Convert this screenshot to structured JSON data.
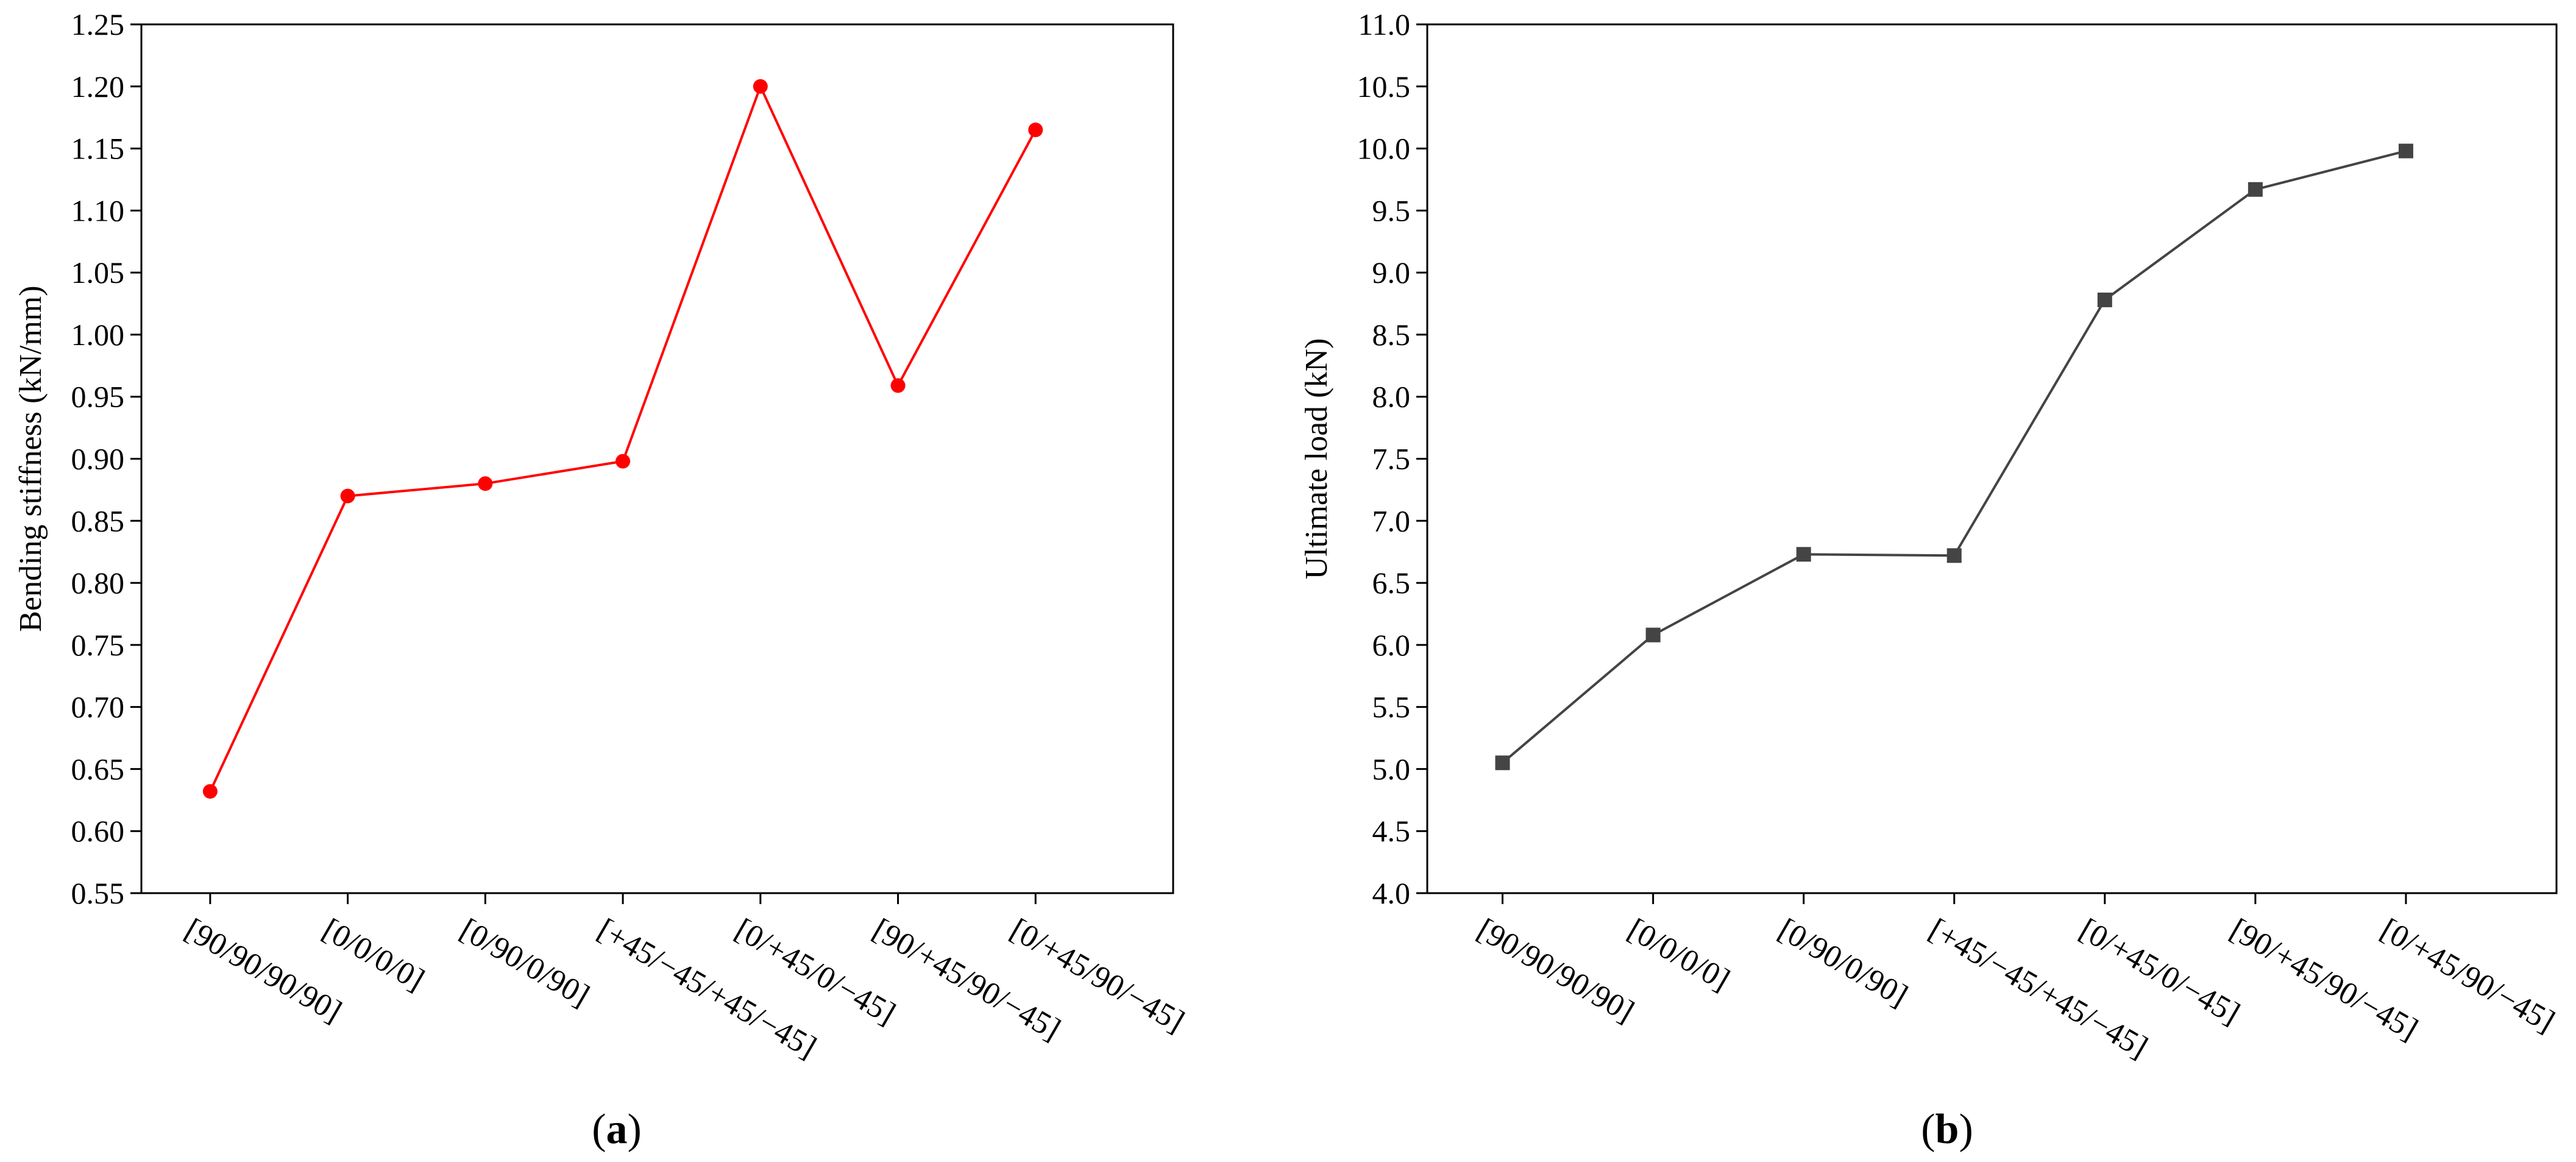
{
  "chart_data": [
    {
      "type": "line",
      "panel_label": "a",
      "categories": [
        "[90/90/90/90]",
        "[0/0/0/0]",
        "[0/90/0/90]",
        "[+45/−45/+45/−45]",
        "[0/+45/0/−45]",
        "[90/+45/90/−45]",
        "[0/+45/90/−45]"
      ],
      "series": [
        {
          "values": [
            0.632,
            0.87,
            0.88,
            0.898,
            1.2,
            0.959,
            1.165
          ],
          "color": "#ff0000",
          "marker": "circle"
        }
      ],
      "title": "",
      "xlabel": "",
      "ylabel": "Bending stiffness (kN/mm)",
      "ylim": [
        0.55,
        1.25
      ],
      "yticks": [
        0.55,
        0.6,
        0.65,
        0.7,
        0.75,
        0.8,
        0.85,
        0.9,
        0.95,
        1.0,
        1.05,
        1.1,
        1.15,
        1.2,
        1.25
      ],
      "ytick_labels": [
        "0.55",
        "0.60",
        "0.65",
        "0.70",
        "0.75",
        "0.80",
        "0.85",
        "0.90",
        "0.95",
        "1.00",
        "1.05",
        "1.10",
        "1.15",
        "1.20",
        "1.25"
      ],
      "grid": false,
      "legend": "none"
    },
    {
      "type": "line",
      "panel_label": "b",
      "categories": [
        "[90/90/90/90]",
        "[0/0/0/0]",
        "[0/90/0/90]",
        "[+45/−45/+45/−45]",
        "[0/+45/0/−45]",
        "[90/+45/90/−45]",
        "[0/+45/90/−45]"
      ],
      "series": [
        {
          "values": [
            5.05,
            6.08,
            6.73,
            6.72,
            8.78,
            9.67,
            9.98
          ],
          "color": "#444444",
          "marker": "square"
        }
      ],
      "title": "",
      "xlabel": "",
      "ylabel": "Ultimate load (kN)",
      "ylim": [
        4.0,
        11.0
      ],
      "yticks": [
        4.0,
        4.5,
        5.0,
        5.5,
        6.0,
        6.5,
        7.0,
        7.5,
        8.0,
        8.5,
        9.0,
        9.5,
        10.0,
        10.5,
        11.0
      ],
      "ytick_labels": [
        "4.0",
        "4.5",
        "5.0",
        "5.5",
        "6.0",
        "6.5",
        "7.0",
        "7.5",
        "8.0",
        "8.5",
        "9.0",
        "9.5",
        "10.0",
        "10.5",
        "11.0"
      ],
      "grid": false,
      "legend": "none"
    }
  ]
}
